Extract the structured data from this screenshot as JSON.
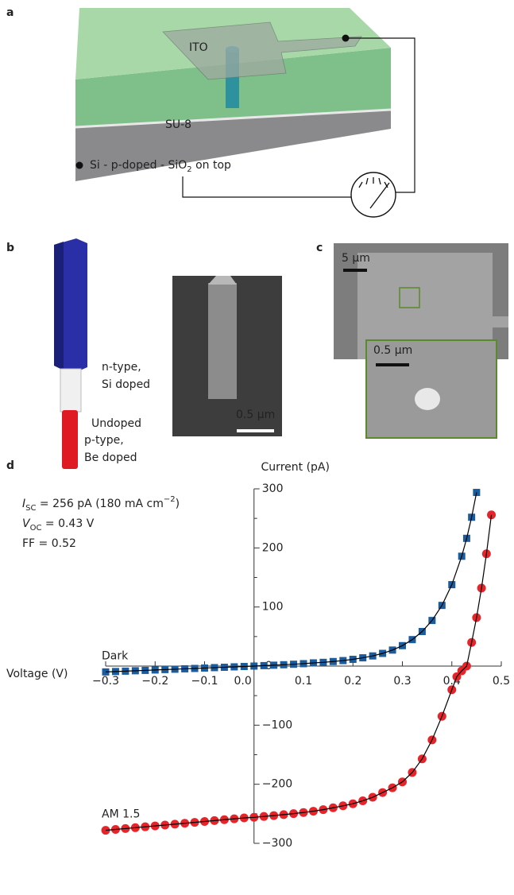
{
  "figure": {
    "a": {
      "label": "a",
      "ito": "ITO",
      "su8": "SU-8",
      "substrate": [
        "Si - p-doped - SiO",
        "2",
        " on top"
      ]
    },
    "b": {
      "label": "b",
      "n_type": [
        "n-type,",
        "Si doped"
      ],
      "undoped": "Undoped",
      "p_type": [
        "p-type,",
        "Be doped"
      ],
      "scale": "0.5 µm"
    },
    "c": {
      "label": "c",
      "scale": "5 µm",
      "inset_scale": "0.5 µm"
    },
    "d": {
      "label": "d"
    }
  },
  "chart_data": {
    "type": "scatter",
    "x_label": "Voltage (V)",
    "y_label": "Current (pA)",
    "annotation": [
      [
        {
          "text": "I",
          "style": "italic"
        },
        {
          "text": "SC",
          "style": "sub"
        },
        {
          "text": " = 256 pA (180 mA cm"
        },
        {
          "text": "−2",
          "style": "sup"
        },
        {
          "text": ")"
        }
      ],
      [
        {
          "text": "V",
          "style": "italic"
        },
        {
          "text": "OC",
          "style": "sub"
        },
        {
          "text": " = 0.43 V"
        }
      ],
      [
        {
          "text": "FF = 0.52"
        }
      ]
    ],
    "series": [
      {
        "name": "Dark",
        "color": "#1b5c9e",
        "marker": "square",
        "line_color": "#000000",
        "x": [
          -0.3,
          -0.28,
          -0.26,
          -0.24,
          -0.22,
          -0.2,
          -0.18,
          -0.16,
          -0.14,
          -0.12,
          -0.1,
          -0.08,
          -0.06,
          -0.04,
          -0.02,
          0,
          0.02,
          0.04,
          0.06,
          0.08,
          0.1,
          0.12,
          0.14,
          0.16,
          0.18,
          0.2,
          0.22,
          0.24,
          0.26,
          0.28,
          0.3,
          0.32,
          0.34,
          0.36,
          0.38,
          0.4,
          0.42,
          0.43,
          0.44,
          0.45
        ],
        "values": [
          -9.9,
          -9.2,
          -8.6,
          -7.9,
          -7.3,
          -6.6,
          -5.9,
          -5.3,
          -4.6,
          -4,
          -3.3,
          -2.6,
          -2,
          -1.3,
          -0.7,
          0,
          0.8,
          1.5,
          2.3,
          3.1,
          4.1,
          5.4,
          6.3,
          7.7,
          9.3,
          11.4,
          14,
          17.2,
          21.5,
          27.1,
          34.6,
          44.8,
          58.5,
          77.2,
          102.7,
          137.8,
          185.9,
          216.2,
          251.9,
          293.9
        ]
      },
      {
        "name": "AM 1.5",
        "color": "#e8242b",
        "marker": "circle",
        "line_color": "#000000",
        "x": [
          -0.3,
          -0.28,
          -0.26,
          -0.24,
          -0.22,
          -0.2,
          -0.18,
          -0.16,
          -0.14,
          -0.12,
          -0.1,
          -0.08,
          -0.06,
          -0.04,
          -0.02,
          0,
          0.02,
          0.04,
          0.06,
          0.08,
          0.1,
          0.12,
          0.14,
          0.16,
          0.18,
          0.2,
          0.22,
          0.24,
          0.26,
          0.28,
          0.3,
          0.32,
          0.34,
          0.36,
          0.38,
          0.4,
          0.41,
          0.42,
          0.43,
          0.44,
          0.45,
          0.46,
          0.47,
          0.48
        ],
        "values": [
          -278,
          -276.5,
          -275,
          -273.5,
          -272,
          -270.5,
          -269,
          -267.5,
          -266,
          -264.5,
          -263,
          -261.5,
          -260,
          -258.5,
          -257,
          -256,
          -254.5,
          -253,
          -251.4,
          -249.7,
          -247.8,
          -245.6,
          -243,
          -239.8,
          -236.5,
          -233,
          -228,
          -222,
          -214,
          -206,
          -196,
          -180,
          -157,
          -125,
          -85,
          -40,
          -18,
          -8,
          0,
          40,
          82,
          132,
          190,
          256
        ]
      }
    ],
    "xlim": [
      -0.3,
      0.5
    ],
    "ylim": [
      -300,
      300
    ],
    "xticks": [
      {
        "value": -0.3,
        "label": "−0.3"
      },
      {
        "value": -0.2,
        "label": "−0.2"
      },
      {
        "value": -0.1,
        "label": "−0.1"
      },
      {
        "value": 0,
        "label": "0.0"
      },
      0.1,
      0.2,
      0.3,
      0.4,
      0.5
    ],
    "yticks": [
      {
        "value": -300,
        "label": "−300"
      },
      {
        "value": -200,
        "label": "−200"
      },
      {
        "value": -100,
        "label": "−100"
      },
      0,
      100,
      200,
      300
    ],
    "yminorticks": [
      -250,
      -150,
      -50,
      50,
      150,
      250
    ]
  }
}
